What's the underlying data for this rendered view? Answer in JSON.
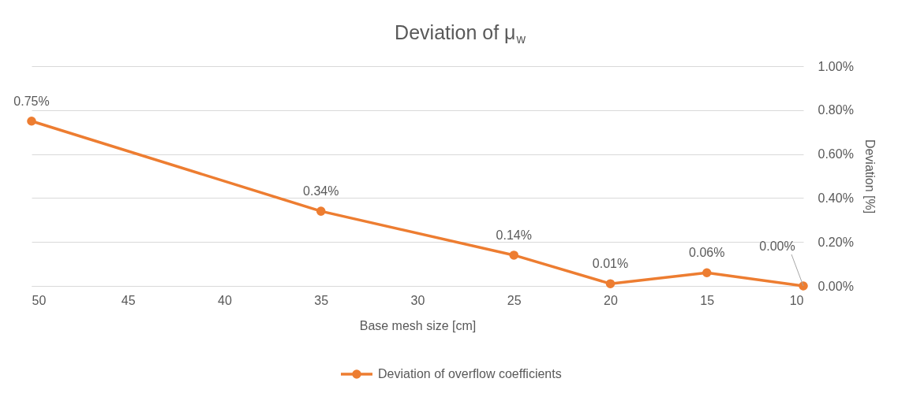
{
  "chart_data": {
    "type": "line",
    "title": "Deviation of μ$_{w}$",
    "xlabel": "Base mesh size [cm]",
    "y2label": "Deviation [%]",
    "x": [
      50,
      35,
      25,
      20,
      15,
      10
    ],
    "series": [
      {
        "name": "Deviation of overflow coefficients",
        "color": "#ed7d31",
        "axis": "y2",
        "values": [
          0.75,
          0.34,
          0.14,
          0.01,
          0.06,
          0.0
        ],
        "value_labels": [
          "0.75%",
          "0.34%",
          "0.14%",
          "0.01%",
          "0.06%",
          "0.00%"
        ]
      }
    ],
    "xlim": [
      50,
      10
    ],
    "xticks": [
      50,
      45,
      40,
      35,
      30,
      25,
      20,
      15,
      10
    ],
    "y2lim": [
      0,
      1
    ],
    "y2ticks": [
      {
        "value": 0,
        "label": "0.00%"
      },
      {
        "value": 0.2,
        "label": "0.20%"
      },
      {
        "value": 0.4,
        "label": "0.40%"
      },
      {
        "value": 0.6,
        "label": "0.60%"
      },
      {
        "value": 0.8,
        "label": "0.80%"
      },
      {
        "value": 1,
        "label": "1.00%"
      }
    ],
    "grid": "y",
    "legend": "bottom",
    "marker": "circle",
    "line_style": "solid"
  }
}
